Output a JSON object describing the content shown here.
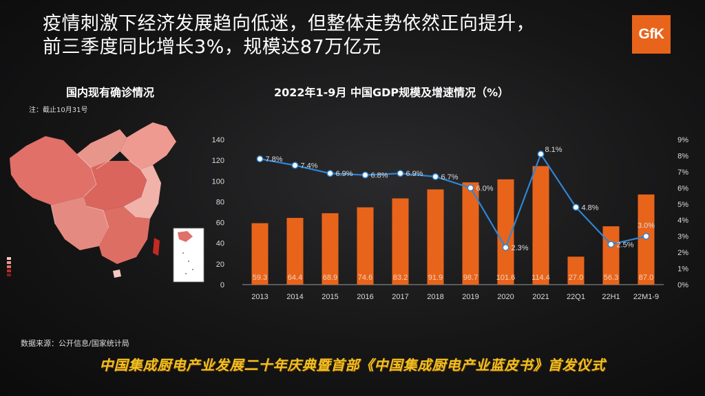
{
  "headline": {
    "line1": "疫情刺激下经济发展趋向低迷，但整体走势依然正向提升，",
    "line2": "前三季度同比增长3%，规模达87万亿元"
  },
  "logo_text": "GfK",
  "map": {
    "title": "国内现有确诊情况",
    "note": "注：截止10月31号"
  },
  "chart_title": "2022年1-9月 中国GDP规模及增速情况（%）",
  "source_note": "数据来源：公开信息/国家统计局",
  "banner": "中国集成厨电产业发展二十年庆典暨首部《中国集成厨电产业蓝皮书》首发仪式",
  "colors": {
    "bar": "#e8641b",
    "line": "#2f86d6",
    "brand": "#e8641b",
    "banner": "#f2c023"
  },
  "chart_data": {
    "type": "bar",
    "title": "2022年1-9月 中国GDP规模及增速情况（%）",
    "categories": [
      "2013",
      "2014",
      "2015",
      "2016",
      "2017",
      "2018",
      "2019",
      "2020",
      "2021",
      "22Q1",
      "22H1",
      "22M1-9"
    ],
    "series": [
      {
        "type": "bar",
        "axis": "left",
        "values": [
          59.3,
          64.4,
          68.9,
          74.6,
          83.2,
          91.9,
          98.7,
          101.6,
          114.4,
          27.0,
          56.3,
          87.0
        ],
        "labels": [
          "59.3",
          "64.4",
          "68.9",
          "74.6",
          "83.2",
          "91.9",
          "98.7",
          "101.6",
          "114.4",
          "27.0",
          "56.3",
          "87.0"
        ]
      },
      {
        "type": "line",
        "axis": "right",
        "values": [
          7.8,
          7.4,
          6.9,
          6.8,
          6.9,
          6.7,
          6.0,
          2.3,
          8.1,
          4.8,
          2.5,
          3.0
        ],
        "labels": [
          "7.8%",
          "7.4%",
          "6.9%",
          "6.8%",
          "6.9%",
          "6.7%",
          "6.0%",
          "2.3%",
          "8.1%",
          "4.8%",
          "2.5%",
          "3.0%"
        ]
      }
    ],
    "ylim": [
      0,
      140
    ],
    "yticks": [
      "0",
      "20",
      "40",
      "60",
      "80",
      "100",
      "120",
      "140"
    ],
    "y2lim": [
      0,
      9
    ],
    "y2ticks": [
      "0%",
      "1%",
      "2%",
      "3%",
      "4%",
      "5%",
      "6%",
      "7%",
      "8%",
      "9%"
    ],
    "grid": false,
    "legend": "none"
  }
}
